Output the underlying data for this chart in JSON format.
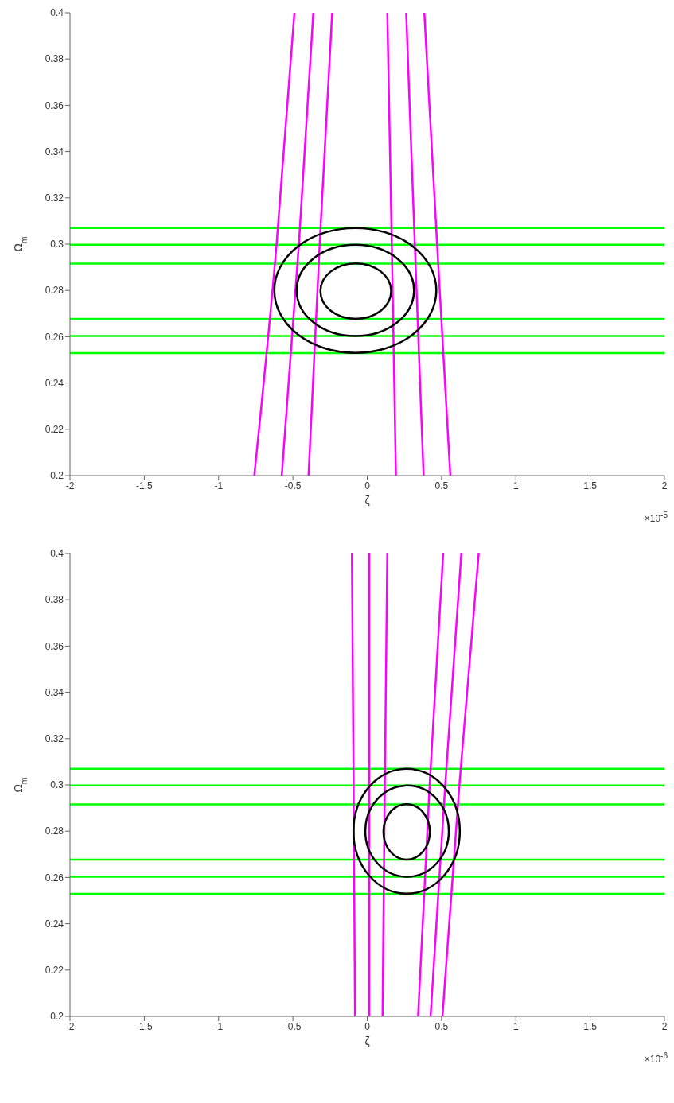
{
  "chart_data": [
    {
      "type": "line",
      "xlabel": "ζ",
      "ylabel": "Ω$_{m}$",
      "annotations": [
        "×10$^{-5}$"
      ],
      "xlim": [
        -2,
        2
      ],
      "xticks": [
        -2,
        -1.5,
        -1,
        -0.5,
        0,
        0.5,
        1,
        1.5,
        2
      ],
      "ylim": [
        0.2,
        0.4
      ],
      "yticks": [
        0.2,
        0.22,
        0.24,
        0.26,
        0.28,
        0.3,
        0.32,
        0.34,
        0.36,
        0.38,
        0.4
      ],
      "grid": false,
      "marker": "none",
      "line_style": "solid",
      "series": [
        {
          "color": "#00ff00",
          "x": [
            -2,
            2
          ],
          "values": [
            0.307,
            0.307
          ]
        },
        {
          "color": "#00ff00",
          "x": [
            -2,
            2
          ],
          "values": [
            0.2997,
            0.2997
          ]
        },
        {
          "color": "#00ff00",
          "x": [
            -2,
            2
          ],
          "values": [
            0.2916,
            0.2916
          ]
        },
        {
          "color": "#00ff00",
          "x": [
            -2,
            2
          ],
          "values": [
            0.2677,
            0.2677
          ]
        },
        {
          "color": "#00ff00",
          "x": [
            -2,
            2
          ],
          "values": [
            0.2603,
            0.2603
          ]
        },
        {
          "color": "#00ff00",
          "x": [
            -2,
            2
          ],
          "values": [
            0.2529,
            0.2529
          ]
        },
        {
          "color": "#ff00ff",
          "x": [
            -0.76,
            -0.61,
            -0.49
          ],
          "values": [
            0.2,
            0.3,
            0.4
          ]
        },
        {
          "color": "#ff00ff",
          "x": [
            -0.575,
            -0.46,
            -0.363
          ],
          "values": [
            0.2,
            0.3,
            0.4
          ]
        },
        {
          "color": "#ff00ff",
          "x": [
            -0.395,
            -0.32,
            -0.236
          ],
          "values": [
            0.2,
            0.3,
            0.4
          ]
        },
        {
          "color": "#ff00ff",
          "x": [
            0.193,
            0.165,
            0.135
          ],
          "values": [
            0.2,
            0.3,
            0.4
          ]
        },
        {
          "color": "#ff00ff",
          "x": [
            0.379,
            0.32,
            0.262
          ],
          "values": [
            0.2,
            0.3,
            0.4
          ]
        },
        {
          "color": "#ff00ff",
          "x": [
            0.559,
            0.47,
            0.384
          ],
          "values": [
            0.2,
            0.3,
            0.4
          ]
        }
      ]
    },
    {
      "type": "line",
      "xlabel": "ζ",
      "ylabel": "Ω$_{m}$",
      "annotations": [
        "×10$^{-6}$"
      ],
      "xlim": [
        -2,
        2
      ],
      "xticks": [
        -2,
        -1.5,
        -1,
        -0.5,
        0,
        0.5,
        1,
        1.5,
        2
      ],
      "ylim": [
        0.2,
        0.4
      ],
      "yticks": [
        0.2,
        0.22,
        0.24,
        0.26,
        0.28,
        0.3,
        0.32,
        0.34,
        0.36,
        0.38,
        0.4
      ],
      "grid": false,
      "marker": "none",
      "line_style": "solid",
      "series": [
        {
          "color": "#00ff00",
          "x": [
            -2,
            2
          ],
          "values": [
            0.307,
            0.307
          ]
        },
        {
          "color": "#00ff00",
          "x": [
            -2,
            2
          ],
          "values": [
            0.2997,
            0.2997
          ]
        },
        {
          "color": "#00ff00",
          "x": [
            -2,
            2
          ],
          "values": [
            0.2916,
            0.2916
          ]
        },
        {
          "color": "#00ff00",
          "x": [
            -2,
            2
          ],
          "values": [
            0.2677,
            0.2677
          ]
        },
        {
          "color": "#00ff00",
          "x": [
            -2,
            2
          ],
          "values": [
            0.2603,
            0.2603
          ]
        },
        {
          "color": "#00ff00",
          "x": [
            -2,
            2
          ],
          "values": [
            0.2529,
            0.2529
          ]
        },
        {
          "color": "#ff00ff",
          "x": [
            -0.082,
            -0.092,
            -0.103
          ],
          "values": [
            0.2,
            0.3,
            0.4
          ]
        },
        {
          "color": "#ff00ff",
          "x": [
            0.013,
            0.013,
            0.013
          ],
          "values": [
            0.2,
            0.3,
            0.4
          ]
        },
        {
          "color": "#ff00ff",
          "x": [
            0.103,
            0.118,
            0.135
          ],
          "values": [
            0.2,
            0.3,
            0.4
          ]
        },
        {
          "color": "#ff00ff",
          "x": [
            0.342,
            0.42,
            0.511
          ],
          "values": [
            0.2,
            0.3,
            0.4
          ]
        },
        {
          "color": "#ff00ff",
          "x": [
            0.426,
            0.525,
            0.633
          ],
          "values": [
            0.2,
            0.3,
            0.4
          ]
        },
        {
          "color": "#ff00ff",
          "x": [
            0.506,
            0.62,
            0.75
          ],
          "values": [
            0.2,
            0.3,
            0.4
          ]
        }
      ]
    }
  ]
}
